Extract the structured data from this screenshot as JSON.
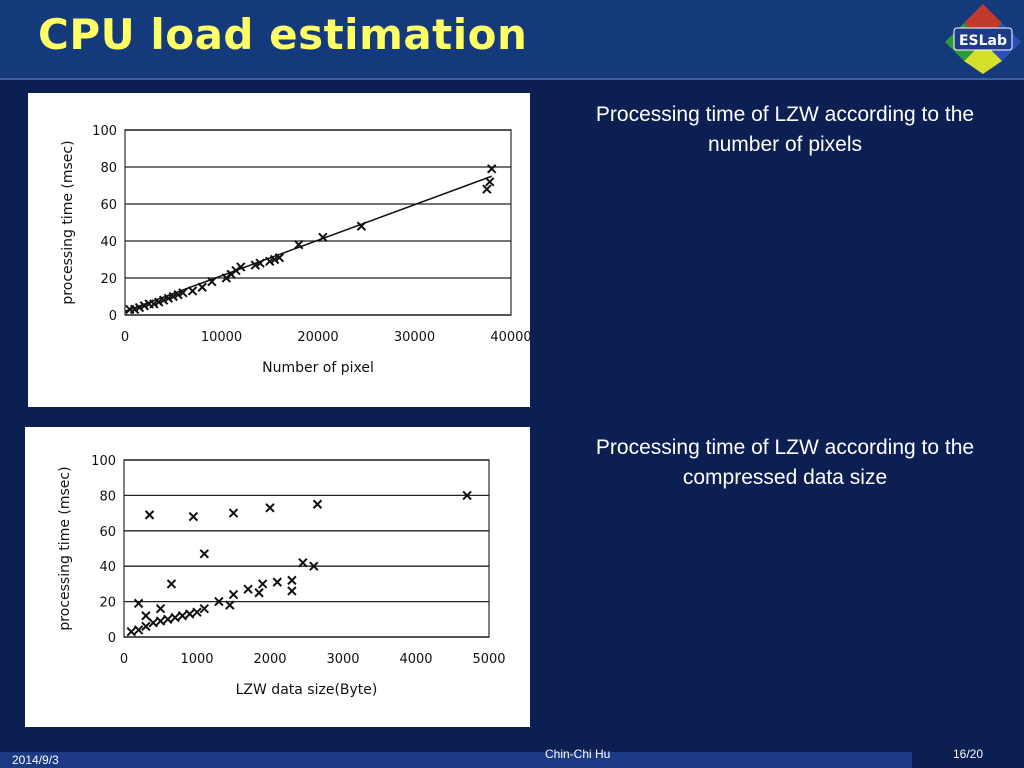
{
  "slide": {
    "title": "CPU load estimation",
    "logo_text": "ESLab",
    "footer_date": "2014/9/3",
    "footer_author": "Chin-Chi Hu",
    "footer_page": "16/20"
  },
  "captions": [
    "Processing time of LZW according to the number of pixels",
    "Processing time of LZW according to the compressed data size"
  ],
  "colors": {
    "background": "#0c1f53",
    "title_bar": "#153a7c",
    "title_text": "#ffff66",
    "caption_text": "#ffffff"
  },
  "chart_data": [
    {
      "type": "scatter",
      "title": "",
      "xlabel": "Number of pixel",
      "ylabel": "processing time (msec)",
      "xlim": [
        0,
        40000
      ],
      "ylim": [
        0,
        100
      ],
      "xticks": [
        "0",
        "10000",
        "20000",
        "30000",
        "40000"
      ],
      "yticks": [
        "0",
        "20",
        "40",
        "60",
        "80",
        "100"
      ],
      "grid": "horizontal",
      "marker": "x",
      "trendline": {
        "x": [
          0,
          38000
        ],
        "y": [
          2,
          75
        ]
      },
      "x": [
        500,
        1000,
        1500,
        2000,
        2500,
        3000,
        3500,
        4000,
        4500,
        5000,
        5500,
        6000,
        7000,
        8000,
        9000,
        10500,
        11000,
        11500,
        12000,
        13500,
        14000,
        15000,
        15500,
        16000,
        18000,
        20500,
        24500,
        37500,
        37800,
        38000
      ],
      "y": [
        3,
        3,
        4,
        5,
        6,
        6,
        7,
        8,
        9,
        10,
        11,
        12,
        13,
        15,
        18,
        20,
        22,
        24,
        26,
        27,
        28,
        29,
        30,
        31,
        38,
        42,
        48,
        68,
        72,
        79
      ]
    },
    {
      "type": "scatter",
      "title": "",
      "xlabel": "LZW data size(Byte)",
      "ylabel": "processing time (msec)",
      "xlim": [
        0,
        5000
      ],
      "ylim": [
        0,
        100
      ],
      "xticks": [
        "0",
        "1000",
        "2000",
        "3000",
        "4000",
        "5000"
      ],
      "yticks": [
        "0",
        "20",
        "40",
        "60",
        "80",
        "100"
      ],
      "grid": "horizontal",
      "marker": "x",
      "x": [
        100,
        200,
        300,
        400,
        500,
        600,
        700,
        800,
        900,
        1000,
        1100,
        1300,
        1500,
        1700,
        1900,
        2100,
        2300,
        2450,
        2600,
        200,
        650,
        1100,
        1450,
        1850,
        2300,
        350,
        950,
        1500,
        2000,
        2650,
        4700,
        300,
        500
      ],
      "y": [
        3,
        4,
        6,
        8,
        9,
        10,
        11,
        12,
        13,
        14,
        16,
        20,
        24,
        27,
        30,
        31,
        32,
        42,
        40,
        19,
        30,
        47,
        18,
        25,
        26,
        69,
        68,
        70,
        73,
        75,
        80,
        12,
        16
      ]
    }
  ]
}
